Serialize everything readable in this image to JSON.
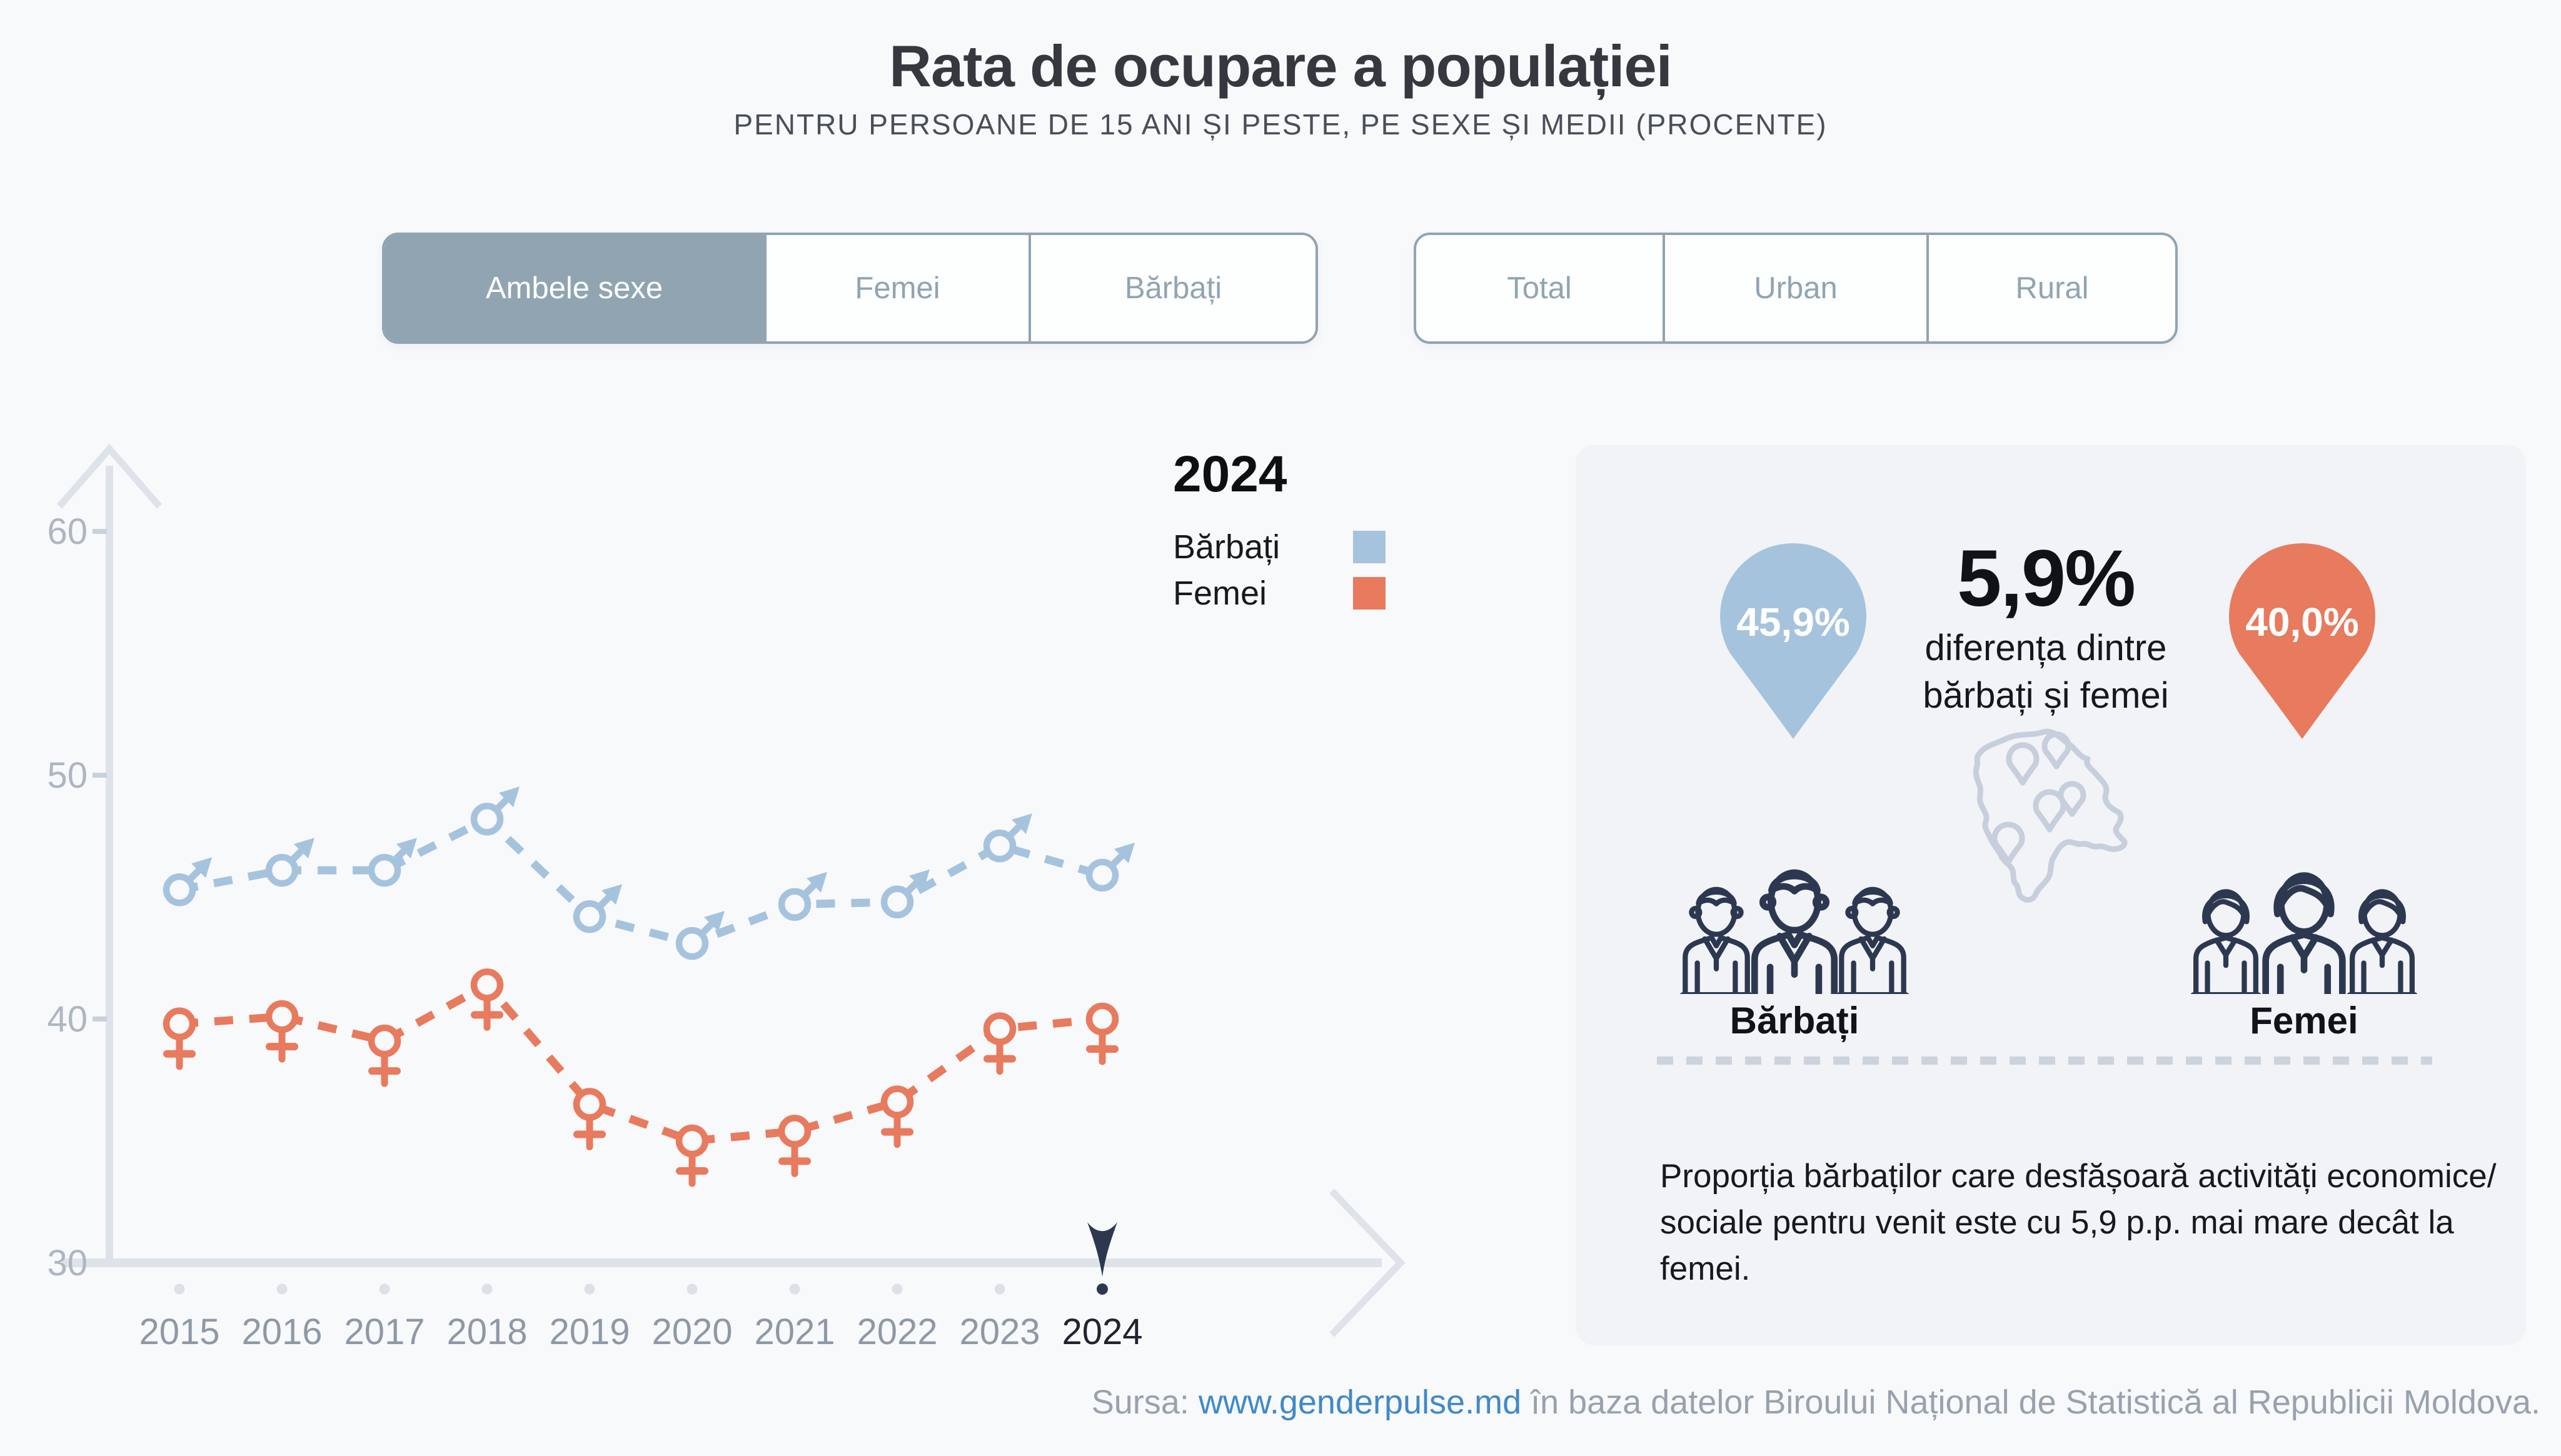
{
  "title": "Rata de ocupare a populației",
  "subtitle": "PENTRU PERSOANE DE 15 ANI ȘI PESTE, PE SEXE ȘI MEDII (PROCENTE)",
  "tabs_sex": {
    "items": [
      {
        "label": "Ambele sexe",
        "selected": true
      },
      {
        "label": "Femei",
        "selected": false
      },
      {
        "label": "Bărbați",
        "selected": false
      }
    ]
  },
  "tabs_area": {
    "items": [
      {
        "label": "Total",
        "selected": false
      },
      {
        "label": "Urban",
        "selected": false
      },
      {
        "label": "Rural",
        "selected": false
      }
    ]
  },
  "chart_data": {
    "type": "line",
    "x": [
      2015,
      2016,
      2017,
      2018,
      2019,
      2020,
      2021,
      2022,
      2023,
      2024
    ],
    "series": [
      {
        "name": "Bărbați",
        "symbol": "male",
        "color": "#a6c3de",
        "values": [
          45.3,
          46.1,
          46.1,
          48.2,
          44.2,
          43.1,
          44.7,
          44.8,
          47.1,
          45.9
        ]
      },
      {
        "name": "Femei",
        "symbol": "female",
        "color": "#e87a5e",
        "values": [
          39.8,
          40.1,
          39.1,
          41.4,
          36.5,
          35.0,
          35.4,
          36.6,
          39.6,
          40.0
        ]
      }
    ],
    "yticks": [
      30,
      40,
      50,
      60
    ],
    "ylim": [
      30,
      62
    ],
    "highlight_year": 2024,
    "legend": {
      "title": "2024",
      "entries": [
        "Bărbați",
        "Femei"
      ]
    },
    "grid": false,
    "line_style": "dashed"
  },
  "panel": {
    "male_pin": {
      "value": "45,9%",
      "color": "#a6c3de"
    },
    "female_pin": {
      "value": "40,0%",
      "color": "#e87a5e"
    },
    "diff": {
      "value": "5,9%",
      "line1": "diferența dintre",
      "line2": "bărbați și femei"
    },
    "male_label": "Bărbați",
    "female_label": "Femei",
    "note": "Proporția bărbaților care desfășoară activități economice/ sociale pentru venit este cu 5,9 p.p. mai mare decât la femei."
  },
  "footer": {
    "prefix": "Sursa: ",
    "link": "www.genderpulse.md",
    "suffix": " în baza datelor Biroului Național de Statistică al Republicii Moldova."
  },
  "colors": {
    "accent_tab": "#91a4b2",
    "navy": "#2d3850",
    "male": "#a6c3de",
    "female": "#e87a5e"
  }
}
